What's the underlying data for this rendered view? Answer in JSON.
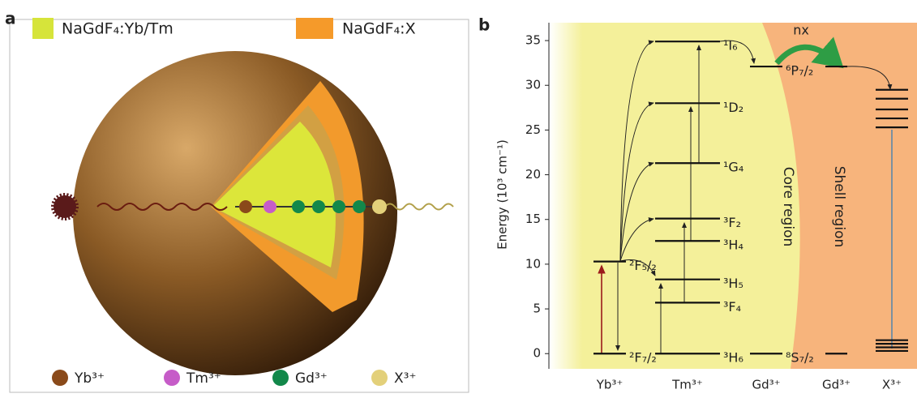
{
  "panel_a": {
    "label": "a",
    "legend": [
      "NaGdF₄:Yb/Tm",
      "NaGdF₄:X"
    ],
    "ions": [
      "Yb³⁺",
      "Tm³⁺",
      "Gd³⁺",
      "X³⁺"
    ]
  },
  "panel_b": {
    "label": "b",
    "y_axis_label": "Energy (10³ cm⁻¹)",
    "ylim": [
      -1.7,
      37
    ],
    "yticks": [
      0,
      5,
      10,
      15,
      20,
      25,
      30,
      35
    ],
    "regions": [
      "Core region",
      "Shell region"
    ],
    "transfer_label": "nx",
    "columns": [
      {
        "name": "Yb³⁺",
        "levels": [
          {
            "label": "²F₇/₂",
            "energy": 0
          },
          {
            "label": "²F₅/₂",
            "energy": 10.3
          }
        ]
      },
      {
        "name": "Tm³⁺",
        "levels": [
          {
            "label": "³H₆",
            "energy": 0
          },
          {
            "label": "³F₄",
            "energy": 5.7
          },
          {
            "label": "³H₅",
            "energy": 8.3
          },
          {
            "label": "³H₄",
            "energy": 12.6
          },
          {
            "label": "³F₂",
            "energy": 15.1
          },
          {
            "label": "¹G₄",
            "energy": 21.3
          },
          {
            "label": "¹D₂",
            "energy": 28
          },
          {
            "label": "¹I₆",
            "energy": 34.9
          }
        ]
      },
      {
        "name": "Gd³⁺",
        "levels": [
          {
            "label": "⁸S₇/₂",
            "energy": 0
          },
          {
            "label": "⁶P₇/₂",
            "energy": 32.1
          }
        ]
      },
      {
        "name": "Gd³⁺",
        "levels": [
          {
            "energy": 0
          },
          {
            "energy": 32.1
          }
        ]
      },
      {
        "name": "X³⁺",
        "levels": [
          {
            "energy": 0.3
          },
          {
            "energy": 0.7
          },
          {
            "energy": 1.1
          },
          {
            "energy": 1.5
          },
          {
            "energy": 25.3
          },
          {
            "energy": 26.3
          },
          {
            "energy": 27.3
          },
          {
            "energy": 28.5
          },
          {
            "energy": 29.5
          }
        ]
      }
    ]
  }
}
